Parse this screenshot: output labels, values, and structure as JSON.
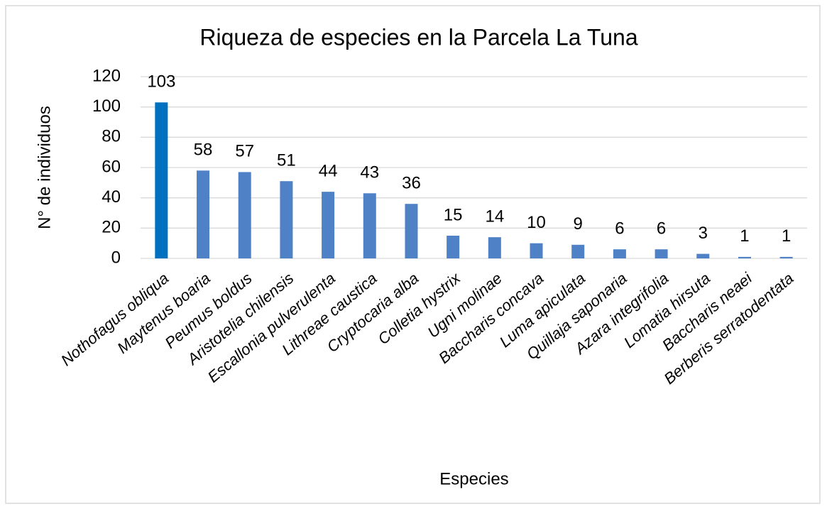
{
  "chart_data": {
    "type": "bar",
    "title": "Riqueza de especies en la Parcela La Tuna",
    "x_label": "Especies",
    "y_label": "N° de individuos",
    "categories": [
      "Nothofagus obliqua",
      "Maytenus boaria",
      "Peumus boldus",
      "Aristotelia chilensis",
      "Escallonia pulverulenta",
      "Lithreae caustica",
      "Cryptocaria alba",
      "Colletia hystrix",
      "Ugni molinae",
      "Baccharis concava",
      "Luma apiculata",
      "Quillaja saponaria",
      "Azara integrifolia",
      "Lomatia hirsuta",
      "Baccharis neaei",
      "Berberis serratodentata"
    ],
    "values": [
      103,
      58,
      57,
      51,
      44,
      43,
      36,
      15,
      14,
      10,
      9,
      6,
      6,
      3,
      1,
      1
    ],
    "colors": [
      "#0070c0",
      "#4f81c7",
      "#4f81c7",
      "#4f81c7",
      "#4f81c7",
      "#4f81c7",
      "#4f81c7",
      "#4f81c7",
      "#4f81c7",
      "#4f81c7",
      "#4f81c7",
      "#4f81c7",
      "#4f81c7",
      "#4f81c7",
      "#4f81c7",
      "#4f81c7"
    ],
    "ylim": [
      0,
      120
    ],
    "yticks": [
      0,
      20,
      40,
      60,
      80,
      100,
      120
    ],
    "grid": true
  }
}
